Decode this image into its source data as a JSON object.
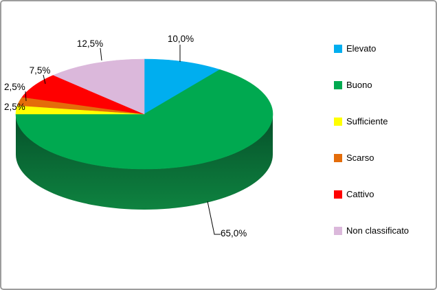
{
  "window": {
    "background": "#ffffff",
    "border_color": "#9c9c9c"
  },
  "chart_data": {
    "type": "pie",
    "style": "3d",
    "title": "",
    "labels": [
      "Elevato",
      "Buono",
      "Sufficiente",
      "Scarso",
      "Cattivo",
      "Non classificato"
    ],
    "values": [
      10.0,
      65.0,
      2.5,
      2.5,
      7.5,
      12.5
    ],
    "data_labels": [
      "10,0%",
      "65,0%",
      "2,5%",
      "2,5%",
      "7,5%",
      "12,5%"
    ],
    "colors": [
      "#00AEEF",
      "#00A950",
      "#FFFF00",
      "#E46C0A",
      "#FF0000",
      "#DBB8DB"
    ],
    "side_gradient": {
      "top": "#06502A",
      "bottom": "#0E8340"
    },
    "label_color": "#000000",
    "leader_line_color": "#000000",
    "legend_position": "right",
    "start_angle_deg": 0,
    "direction": "clockwise"
  }
}
